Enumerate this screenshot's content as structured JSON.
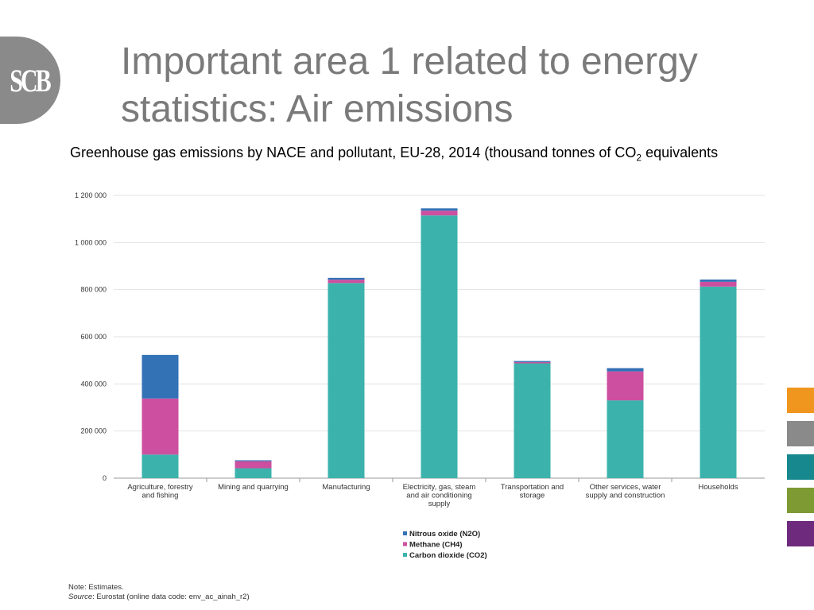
{
  "logo": {
    "text": "SCB"
  },
  "slide": {
    "title": "Important area 1 related to energy statistics: Air emissions",
    "caption_main": "Greenhouse gas emissions by NACE and pollutant, EU-28, 2014 (thousand tonnes of CO",
    "caption_sub": "2",
    "caption_end": " equivalents"
  },
  "chart_data": {
    "type": "bar",
    "stacked": true,
    "categories": [
      "Agriculture, forestry and fishing",
      "Mining and quarrying",
      "Manufacturing",
      "Electricity, gas, steam and air conditioning supply",
      "Transportation and storage",
      "Other services, water supply and construction",
      "Households"
    ],
    "category_label_lines": [
      [
        "Agriculture, forestry",
        "and fishing"
      ],
      [
        "Mining and quarrying"
      ],
      [
        "Manufacturing"
      ],
      [
        "Electricity, gas, steam",
        "and air conditioning",
        "supply"
      ],
      [
        "Transportation and",
        "storage"
      ],
      [
        "Other services, water",
        "supply and construction"
      ],
      [
        "Households"
      ]
    ],
    "series": [
      {
        "name": "Carbon dioxide (CO2)",
        "color": "#3bb3ac",
        "values": [
          100000,
          42000,
          828000,
          1115000,
          487000,
          330000,
          813000
        ]
      },
      {
        "name": "Methane (CH4)",
        "color": "#cd4f9f",
        "values": [
          238000,
          30000,
          14000,
          20000,
          5000,
          123000,
          20000
        ]
      },
      {
        "name": "Nitrous oxide (N2O)",
        "color": "#3472b6",
        "values": [
          185000,
          4000,
          8000,
          10000,
          5000,
          14000,
          10000
        ]
      }
    ],
    "legend_order": [
      "Nitrous oxide (N2O)",
      "Methane (CH4)",
      "Carbon dioxide (CO2)"
    ],
    "ylim": [
      0,
      1200000
    ],
    "yticks": [
      0,
      200000,
      400000,
      600000,
      800000,
      1000000,
      1200000
    ],
    "ytick_labels": [
      "0",
      "200 000",
      "400 000",
      "600 000",
      "800 000",
      "1 000 000",
      "1 200 000"
    ],
    "grid": true,
    "legend_placement": "bottom-center"
  },
  "notes": {
    "line1": "Note: Estimates.",
    "source_label": "Source",
    "source_text": ": Eurostat (online data code: env_ac_ainah_r2)"
  },
  "side_swatches": [
    "#f0961e",
    "#8a8a8a",
    "#16888e",
    "#7e9a32",
    "#6e2b7d"
  ]
}
